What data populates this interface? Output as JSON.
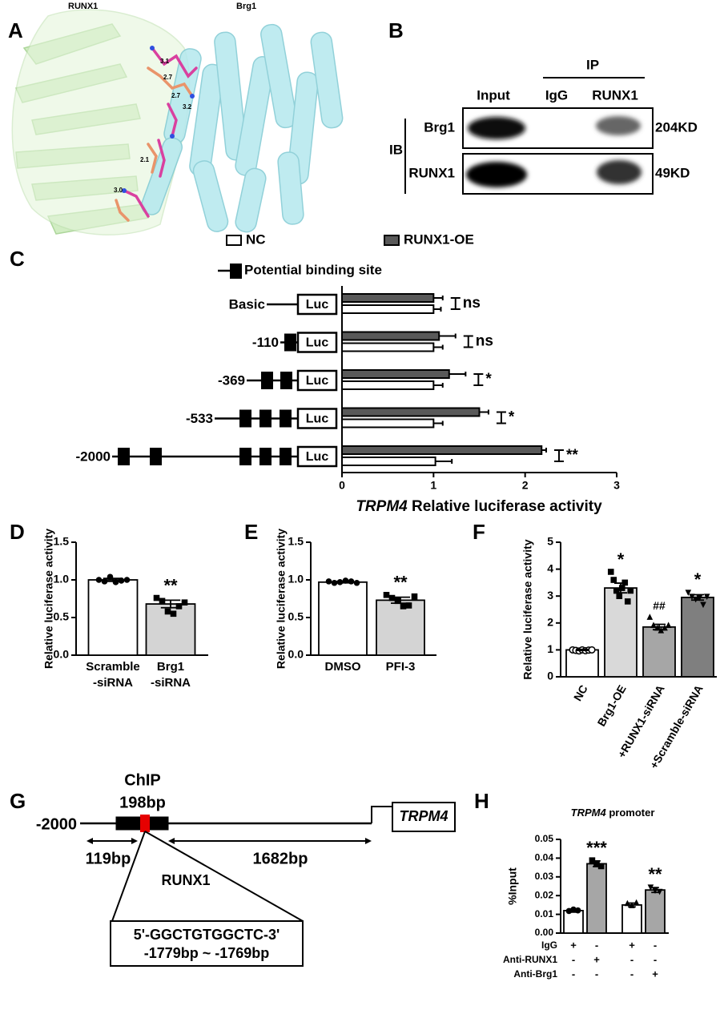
{
  "panel_a": {
    "label": "A",
    "protein_1": "RUNX1",
    "protein_2": "Brg1",
    "distances": [
      "3.1",
      "2.7",
      "2.7",
      "3.2",
      "2.1",
      "3.0"
    ]
  },
  "panel_b": {
    "label": "B",
    "ip": "IP",
    "lanes": [
      "Input",
      "IgG",
      "RUNX1"
    ],
    "ib": "IB",
    "blots": [
      {
        "name": "Brg1",
        "size": "204KD"
      },
      {
        "name": "RUNX1",
        "size": "49KD"
      }
    ]
  },
  "chart_data": [
    {
      "type": "barh",
      "panel": "C",
      "categories": [
        "Basic",
        "-110",
        "-369",
        "-533",
        "-2000"
      ],
      "series": [
        {
          "name": "NC",
          "color": "#ffffff",
          "values": [
            1.0,
            1.0,
            1.0,
            1.0,
            1.02
          ],
          "errors": [
            0.08,
            0.1,
            0.1,
            0.1,
            0.18
          ]
        },
        {
          "name": "RUNX1-OE",
          "color": "#595959",
          "values": [
            1.0,
            1.06,
            1.17,
            1.5,
            2.18
          ],
          "errors": [
            0.1,
            0.18,
            0.18,
            0.1,
            0.05
          ]
        }
      ],
      "xlim": [
        0,
        3
      ],
      "xticks": [
        0,
        1,
        2,
        3
      ],
      "x_label_gene": "TRPM4",
      "x_label": "Relative luciferase activity",
      "reporter": "Luc",
      "site_legend": "Potential  binding site",
      "annotations": [
        "ns",
        "ns",
        "*",
        "*",
        "**"
      ]
    },
    {
      "type": "bar",
      "panel": "D",
      "y_label": "Relative luciferase activity",
      "categories": [
        [
          "Scramble",
          "-siRNA"
        ],
        [
          "Brg1",
          "-siRNA"
        ]
      ],
      "values": [
        1.0,
        0.68
      ],
      "errors": [
        0.02,
        0.05
      ],
      "colors": [
        "#ffffff",
        "#d4d4d4"
      ],
      "markers": [
        "circle",
        "square"
      ],
      "points": [
        [
          1.0,
          0.98,
          1.04,
          0.97,
          0.99,
          1.0
        ],
        [
          0.76,
          0.72,
          0.58,
          0.55,
          0.65,
          0.7
        ]
      ],
      "annotations": [
        null,
        "**"
      ],
      "ylim": [
        0,
        1.5
      ],
      "yticks": [
        {
          "value": 0,
          "label": "0.0"
        },
        0.5,
        {
          "value": 1,
          "label": "1.0"
        },
        1.5
      ]
    },
    {
      "type": "bar",
      "panel": "E",
      "y_label": "Relative luciferase activity",
      "categories": [
        "DMSO",
        "PFI-3"
      ],
      "values": [
        0.97,
        0.73
      ],
      "errors": [
        0.01,
        0.04
      ],
      "colors": [
        "#ffffff",
        "#d4d4d4"
      ],
      "markers": [
        "circle",
        "square"
      ],
      "points": [
        [
          0.98,
          0.96,
          0.97,
          0.99,
          0.98,
          0.96
        ],
        [
          0.8,
          0.76,
          0.72,
          0.65,
          0.66,
          0.78
        ]
      ],
      "annotations": [
        null,
        "**"
      ],
      "ylim": [
        0,
        1.5
      ],
      "yticks": [
        {
          "value": 0,
          "label": "0.0"
        },
        0.5,
        {
          "value": 1,
          "label": "1.0"
        },
        1.5
      ]
    },
    {
      "type": "bar",
      "panel": "F",
      "y_label": "Relative luciferase activity",
      "categories": [
        "NC",
        "Brg1-OE",
        "+RUNX1-siRNA",
        "+Scramble-siRNA"
      ],
      "values": [
        1.0,
        3.3,
        1.85,
        2.95
      ],
      "errors": [
        0.02,
        0.18,
        0.1,
        0.1
      ],
      "colors": [
        "#ffffff",
        "#d9d9d9",
        "#a6a6a6",
        "#7f7f7f"
      ],
      "markers": [
        "circle-open",
        "square",
        "triangle",
        "triangle-down"
      ],
      "points": [
        [
          1.0,
          0.98,
          0.96,
          1.0,
          0.97,
          0.99,
          1.0
        ],
        [
          3.9,
          3.6,
          3.2,
          3.0,
          3.3,
          3.5,
          2.8,
          3.2
        ],
        [
          2.2,
          1.9,
          1.8,
          1.7,
          1.8,
          1.9
        ],
        [
          3.15,
          3.0,
          2.9,
          2.95,
          2.7,
          3.0
        ]
      ],
      "annotations": [
        null,
        "*",
        "##",
        "*"
      ],
      "ylim": [
        0,
        5
      ],
      "yticks": [
        0,
        1,
        2,
        3,
        4,
        5
      ]
    },
    {
      "type": "bar",
      "panel": "H",
      "title_gene": "TRPM4",
      "title": "promoter",
      "y_label": "%Input",
      "values": [
        0.012,
        0.037,
        0.015,
        0.023
      ],
      "errors": [
        0.0008,
        0.0015,
        0.001,
        0.0013
      ],
      "colors": [
        "#ffffff",
        "#a6a6a6",
        "#ffffff",
        "#a6a6a6"
      ],
      "markers": [
        "circle",
        "square",
        "triangle",
        "triangle-down"
      ],
      "points": [
        [
          0.0118,
          0.0126,
          0.0121
        ],
        [
          0.0388,
          0.0372,
          0.0357
        ],
        [
          0.0156,
          0.0145,
          0.016
        ],
        [
          0.0247,
          0.023,
          0.0224
        ]
      ],
      "annotations": [
        null,
        "***",
        null,
        "**"
      ],
      "conditions": [
        {
          "name": "IgG",
          "marks": [
            "+",
            "-",
            "+",
            "-"
          ]
        },
        {
          "name": "Anti-RUNX1",
          "marks": [
            "-",
            "+",
            "-",
            "-"
          ]
        },
        {
          "name": "Anti-Brg1",
          "marks": [
            "-",
            "-",
            "-",
            "+"
          ]
        }
      ],
      "ylim": [
        0,
        0.05
      ],
      "yticks": [
        {
          "value": 0,
          "label": "0.00"
        },
        0.01,
        0.02,
        0.03,
        0.04,
        0.05
      ]
    }
  ],
  "panel_g": {
    "label": "G",
    "chip": "ChIP",
    "chip_size": "198bp",
    "start": "-2000",
    "gene": "TRPM4",
    "upstream": "119bp",
    "downstream": "1682bp",
    "factor": "RUNX1",
    "motif": "5'-GGCTGTGGCTC-3'",
    "motif_range": "-1779bp ~ -1769bp"
  }
}
